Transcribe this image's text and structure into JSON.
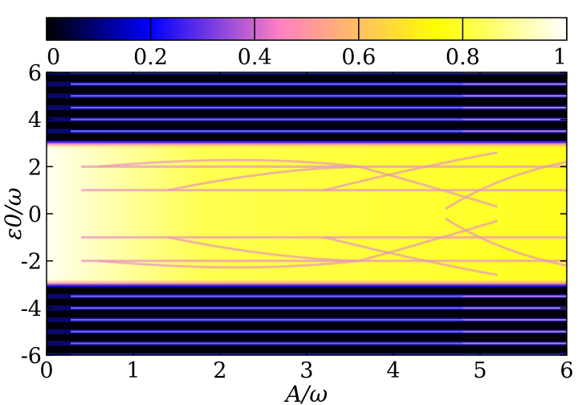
{
  "chart_data": {
    "type": "heatmap",
    "title": "",
    "xlabel": "A/ω",
    "ylabel": "ε0/ω",
    "xlim": [
      0,
      6
    ],
    "ylim": [
      -6,
      6
    ],
    "x_ticks": [
      "0",
      "1",
      "2",
      "3",
      "4",
      "5",
      "6"
    ],
    "y_ticks": [
      "6",
      "4",
      "2",
      "0",
      "-2",
      "-4",
      "-6"
    ],
    "colorbar": {
      "range": [
        0,
        1
      ],
      "ticks": [
        "0",
        "0.2",
        "0.4",
        "0.6",
        "0.8",
        "1"
      ],
      "orientation": "horizontal",
      "position": "top",
      "colormap": [
        "#000000",
        "#0000ff",
        "#ff80c0",
        "#ffff00",
        "#ffffff"
      ]
    },
    "high_band": {
      "y_range": [
        -3,
        3
      ],
      "value_approx": 0.9
    },
    "resonance_lines": {
      "outside_band_y": [
        -6,
        -5.5,
        -5,
        -4.5,
        -4,
        -3.5,
        3.5,
        4,
        4.5,
        5,
        5.5,
        6
      ],
      "outside_band_value_approx": 0.25,
      "inside_band_y": [
        -2,
        -1,
        1,
        2
      ],
      "inside_band_value_approx": 0.5
    }
  }
}
